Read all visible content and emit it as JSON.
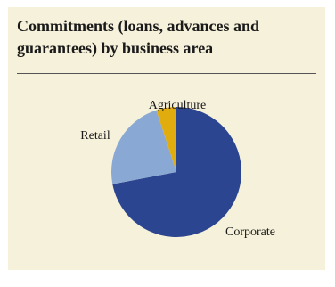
{
  "chart_data": {
    "type": "pie",
    "title": "Commitments (loans, advances and guarantees) by business area",
    "slices": [
      {
        "label": "Corporate",
        "value": 72,
        "color": "#2b4590"
      },
      {
        "label": "Retail",
        "value": 23,
        "color": "#8aa8d4"
      },
      {
        "label": "Agriculture",
        "value": 5,
        "color": "#e1ad0e"
      }
    ],
    "legend": "none"
  }
}
